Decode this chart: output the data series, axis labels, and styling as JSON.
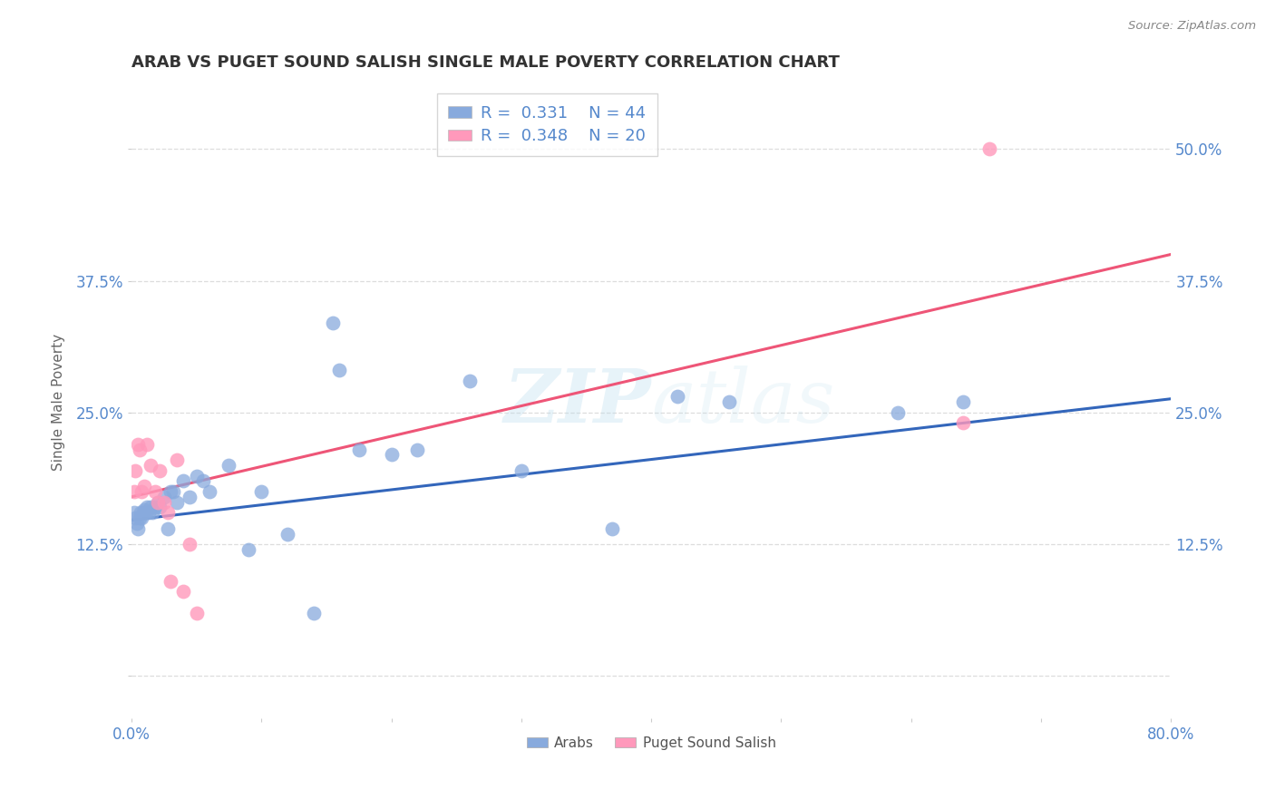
{
  "title": "ARAB VS PUGET SOUND SALISH SINGLE MALE POVERTY CORRELATION CHART",
  "source": "Source: ZipAtlas.com",
  "ylabel": "Single Male Poverty",
  "xlabel": "",
  "xlim": [
    0.0,
    0.8
  ],
  "ylim": [
    -0.04,
    0.56
  ],
  "yticks": [
    0.0,
    0.125,
    0.25,
    0.375,
    0.5
  ],
  "ytick_labels": [
    "",
    "12.5%",
    "25.0%",
    "37.5%",
    "50.0%"
  ],
  "xticks": [
    0.0,
    0.1,
    0.2,
    0.3,
    0.4,
    0.5,
    0.6,
    0.7,
    0.8
  ],
  "xtick_labels": [
    "0.0%",
    "",
    "",
    "",
    "",
    "",
    "",
    "",
    "80.0%"
  ],
  "arab_R": 0.331,
  "arab_N": 44,
  "salish_R": 0.348,
  "salish_N": 20,
  "arab_color": "#88AADD",
  "salish_color": "#FF99BB",
  "arab_line_color": "#3366BB",
  "salish_line_color": "#EE5577",
  "title_color": "#333333",
  "axis_label_color": "#666666",
  "tick_label_color": "#5588CC",
  "watermark_color": "#BBDDEE",
  "background_color": "#FFFFFF",
  "grid_color": "#DDDDDD",
  "arab_x": [
    0.002,
    0.003,
    0.004,
    0.005,
    0.006,
    0.007,
    0.008,
    0.009,
    0.01,
    0.011,
    0.012,
    0.013,
    0.015,
    0.016,
    0.018,
    0.02,
    0.022,
    0.025,
    0.028,
    0.03,
    0.032,
    0.035,
    0.04,
    0.045,
    0.05,
    0.055,
    0.06,
    0.075,
    0.09,
    0.1,
    0.12,
    0.14,
    0.16,
    0.2,
    0.22,
    0.26,
    0.3,
    0.37,
    0.42,
    0.46,
    0.59,
    0.64,
    0.155,
    0.175
  ],
  "arab_y": [
    0.155,
    0.15,
    0.145,
    0.14,
    0.15,
    0.155,
    0.15,
    0.155,
    0.158,
    0.155,
    0.16,
    0.155,
    0.16,
    0.155,
    0.16,
    0.165,
    0.16,
    0.17,
    0.14,
    0.175,
    0.175,
    0.165,
    0.185,
    0.17,
    0.19,
    0.185,
    0.175,
    0.2,
    0.12,
    0.175,
    0.135,
    0.06,
    0.29,
    0.21,
    0.215,
    0.28,
    0.195,
    0.14,
    0.265,
    0.26,
    0.25,
    0.26,
    0.335,
    0.215
  ],
  "salish_x": [
    0.002,
    0.003,
    0.005,
    0.006,
    0.008,
    0.01,
    0.012,
    0.015,
    0.018,
    0.02,
    0.022,
    0.025,
    0.028,
    0.03,
    0.035,
    0.04,
    0.045,
    0.05,
    0.64,
    0.66
  ],
  "salish_y": [
    0.175,
    0.195,
    0.22,
    0.215,
    0.175,
    0.18,
    0.22,
    0.2,
    0.175,
    0.165,
    0.195,
    0.165,
    0.155,
    0.09,
    0.205,
    0.08,
    0.125,
    0.06,
    0.24,
    0.5
  ],
  "arab_line_x0": 0.0,
  "arab_line_y0": 0.148,
  "arab_line_x1": 0.8,
  "arab_line_y1": 0.263,
  "salish_line_x0": 0.0,
  "salish_line_y0": 0.17,
  "salish_line_x1": 0.8,
  "salish_line_y1": 0.4
}
